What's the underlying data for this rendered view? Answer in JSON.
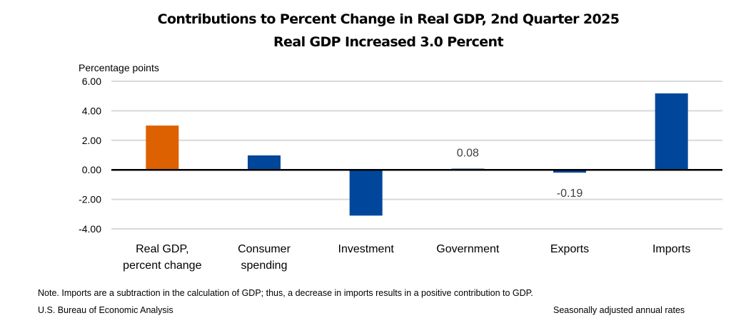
{
  "chart_data": {
    "type": "bar",
    "title": "Contributions to Percent Change in Real GDP, 2nd Quarter 2025",
    "subtitle": "Real GDP Increased 3.0 Percent",
    "ylabel": "Percentage points",
    "xlabel": "",
    "ylim": [
      -4,
      6
    ],
    "yticks": [
      6,
      4,
      2,
      0,
      -2,
      -4
    ],
    "ytick_labels": [
      "6.00",
      "4.00",
      "2.00",
      "0.00",
      "-2.00",
      "-4.00"
    ],
    "grid": true,
    "categories": [
      [
        "Real GDP,",
        "percent change"
      ],
      [
        "Consumer",
        "spending"
      ],
      [
        "Investment"
      ],
      [
        "Government"
      ],
      [
        "Exports"
      ],
      [
        "Imports"
      ]
    ],
    "values": [
      3.0,
      0.98,
      -3.1,
      0.08,
      -0.19,
      5.18
    ],
    "colors": [
      "#dd6100",
      "#00479b",
      "#00479b",
      "#00479b",
      "#00479b",
      "#00479b"
    ],
    "data_labels": [
      null,
      null,
      null,
      "0.08",
      "-0.19",
      null
    ]
  },
  "footer": {
    "note": "Note. Imports are a subtraction in the calculation of GDP; thus, a decrease in imports results in a positive contribution to GDP.",
    "source": "U.S. Bureau of Economic Analysis",
    "rates": "Seasonally adjusted annual rates"
  }
}
